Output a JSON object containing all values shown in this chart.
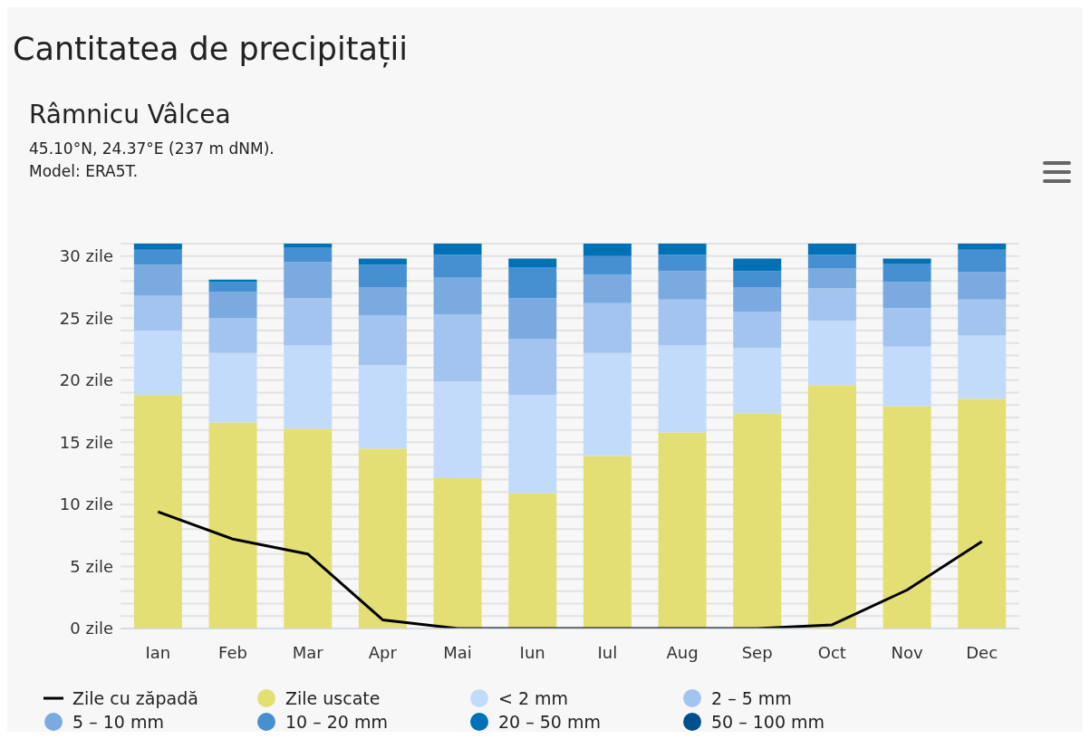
{
  "chart_data": {
    "type": "bar",
    "title": "Cantitatea de precipitații",
    "subtitle": "Râmnicu Vâlcea",
    "annotations": [
      "45.10°N, 24.37°E (237 m dNM).",
      "Model: ERA5T."
    ],
    "categories": [
      "Ian",
      "Feb",
      "Mar",
      "Apr",
      "Mai",
      "Iun",
      "Iul",
      "Aug",
      "Sep",
      "Oct",
      "Nov",
      "Dec"
    ],
    "stacked": true,
    "grid": "y",
    "legend": "bottom",
    "marker": "none",
    "ylim": [
      0,
      31
    ],
    "yticks": [
      {
        "value": 0,
        "label": "0 zile"
      },
      {
        "value": 1,
        "label": null
      },
      {
        "value": 2,
        "label": null
      },
      {
        "value": 3,
        "label": null
      },
      {
        "value": 4,
        "label": null
      },
      {
        "value": 5,
        "label": "5 zile"
      },
      {
        "value": 6,
        "label": null
      },
      {
        "value": 7,
        "label": null
      },
      {
        "value": 8,
        "label": null
      },
      {
        "value": 9,
        "label": null
      },
      {
        "value": 10,
        "label": "10 zile"
      },
      {
        "value": 11,
        "label": null
      },
      {
        "value": 12,
        "label": null
      },
      {
        "value": 13,
        "label": null
      },
      {
        "value": 14,
        "label": null
      },
      {
        "value": 15,
        "label": "15 zile"
      },
      {
        "value": 16,
        "label": null
      },
      {
        "value": 17,
        "label": null
      },
      {
        "value": 18,
        "label": null
      },
      {
        "value": 19,
        "label": null
      },
      {
        "value": 20,
        "label": "20 zile"
      },
      {
        "value": 21,
        "label": null
      },
      {
        "value": 22,
        "label": null
      },
      {
        "value": 23,
        "label": null
      },
      {
        "value": 24,
        "label": null
      },
      {
        "value": 25,
        "label": "25 zile"
      },
      {
        "value": 26,
        "label": null
      },
      {
        "value": 27,
        "label": null
      },
      {
        "value": 28,
        "label": null
      },
      {
        "value": 29,
        "label": null
      },
      {
        "value": 30,
        "label": "30 zile"
      },
      {
        "value": 31,
        "label": null
      }
    ],
    "series": [
      {
        "name": "Zile cu zăpadă",
        "type": "line",
        "color": "#000000",
        "line_style": "solid",
        "values": [
          9.4,
          7.2,
          6.0,
          0.7,
          0,
          0,
          0,
          0,
          0,
          0.3,
          3.1,
          7.0
        ]
      },
      {
        "name": "Zile uscate",
        "color": "#e3df74",
        "values": [
          18.8,
          16.6,
          16.1,
          14.5,
          12.1,
          10.9,
          13.9,
          15.8,
          17.3,
          19.6,
          17.9,
          18.5
        ]
      },
      {
        "name": "< 2 mm",
        "color": "#c3dbfa",
        "values": [
          5.2,
          5.6,
          6.7,
          6.7,
          7.8,
          7.9,
          8.3,
          7.0,
          5.3,
          5.2,
          4.8,
          5.1
        ]
      },
      {
        "name": "2 – 5 mm",
        "color": "#a2c4ef",
        "values": [
          2.8,
          2.8,
          3.8,
          4.0,
          5.4,
          4.5,
          4.0,
          3.7,
          2.9,
          2.6,
          3.1,
          2.9
        ]
      },
      {
        "name": "5 – 10 mm",
        "color": "#7aaae0",
        "values": [
          2.5,
          2.1,
          2.9,
          2.3,
          3.0,
          3.3,
          2.3,
          2.3,
          2.0,
          1.6,
          2.1,
          2.2
        ]
      },
      {
        "name": "10 – 20 mm",
        "color": "#4690d2",
        "values": [
          1.2,
          0.8,
          1.2,
          1.8,
          1.8,
          2.5,
          1.5,
          1.3,
          1.3,
          1.1,
          1.5,
          1.8
        ]
      },
      {
        "name": "20 – 50 mm",
        "color": "#0071b5",
        "values": [
          0.5,
          0.2,
          0.3,
          0.5,
          0.9,
          0.7,
          1.0,
          0.9,
          1.0,
          0.9,
          0.4,
          0.5
        ]
      },
      {
        "name": "50 – 100 mm",
        "color": "#00508f",
        "values": [
          0,
          0,
          0,
          0,
          0,
          0,
          0,
          0,
          0,
          0,
          0,
          0
        ]
      }
    ]
  }
}
